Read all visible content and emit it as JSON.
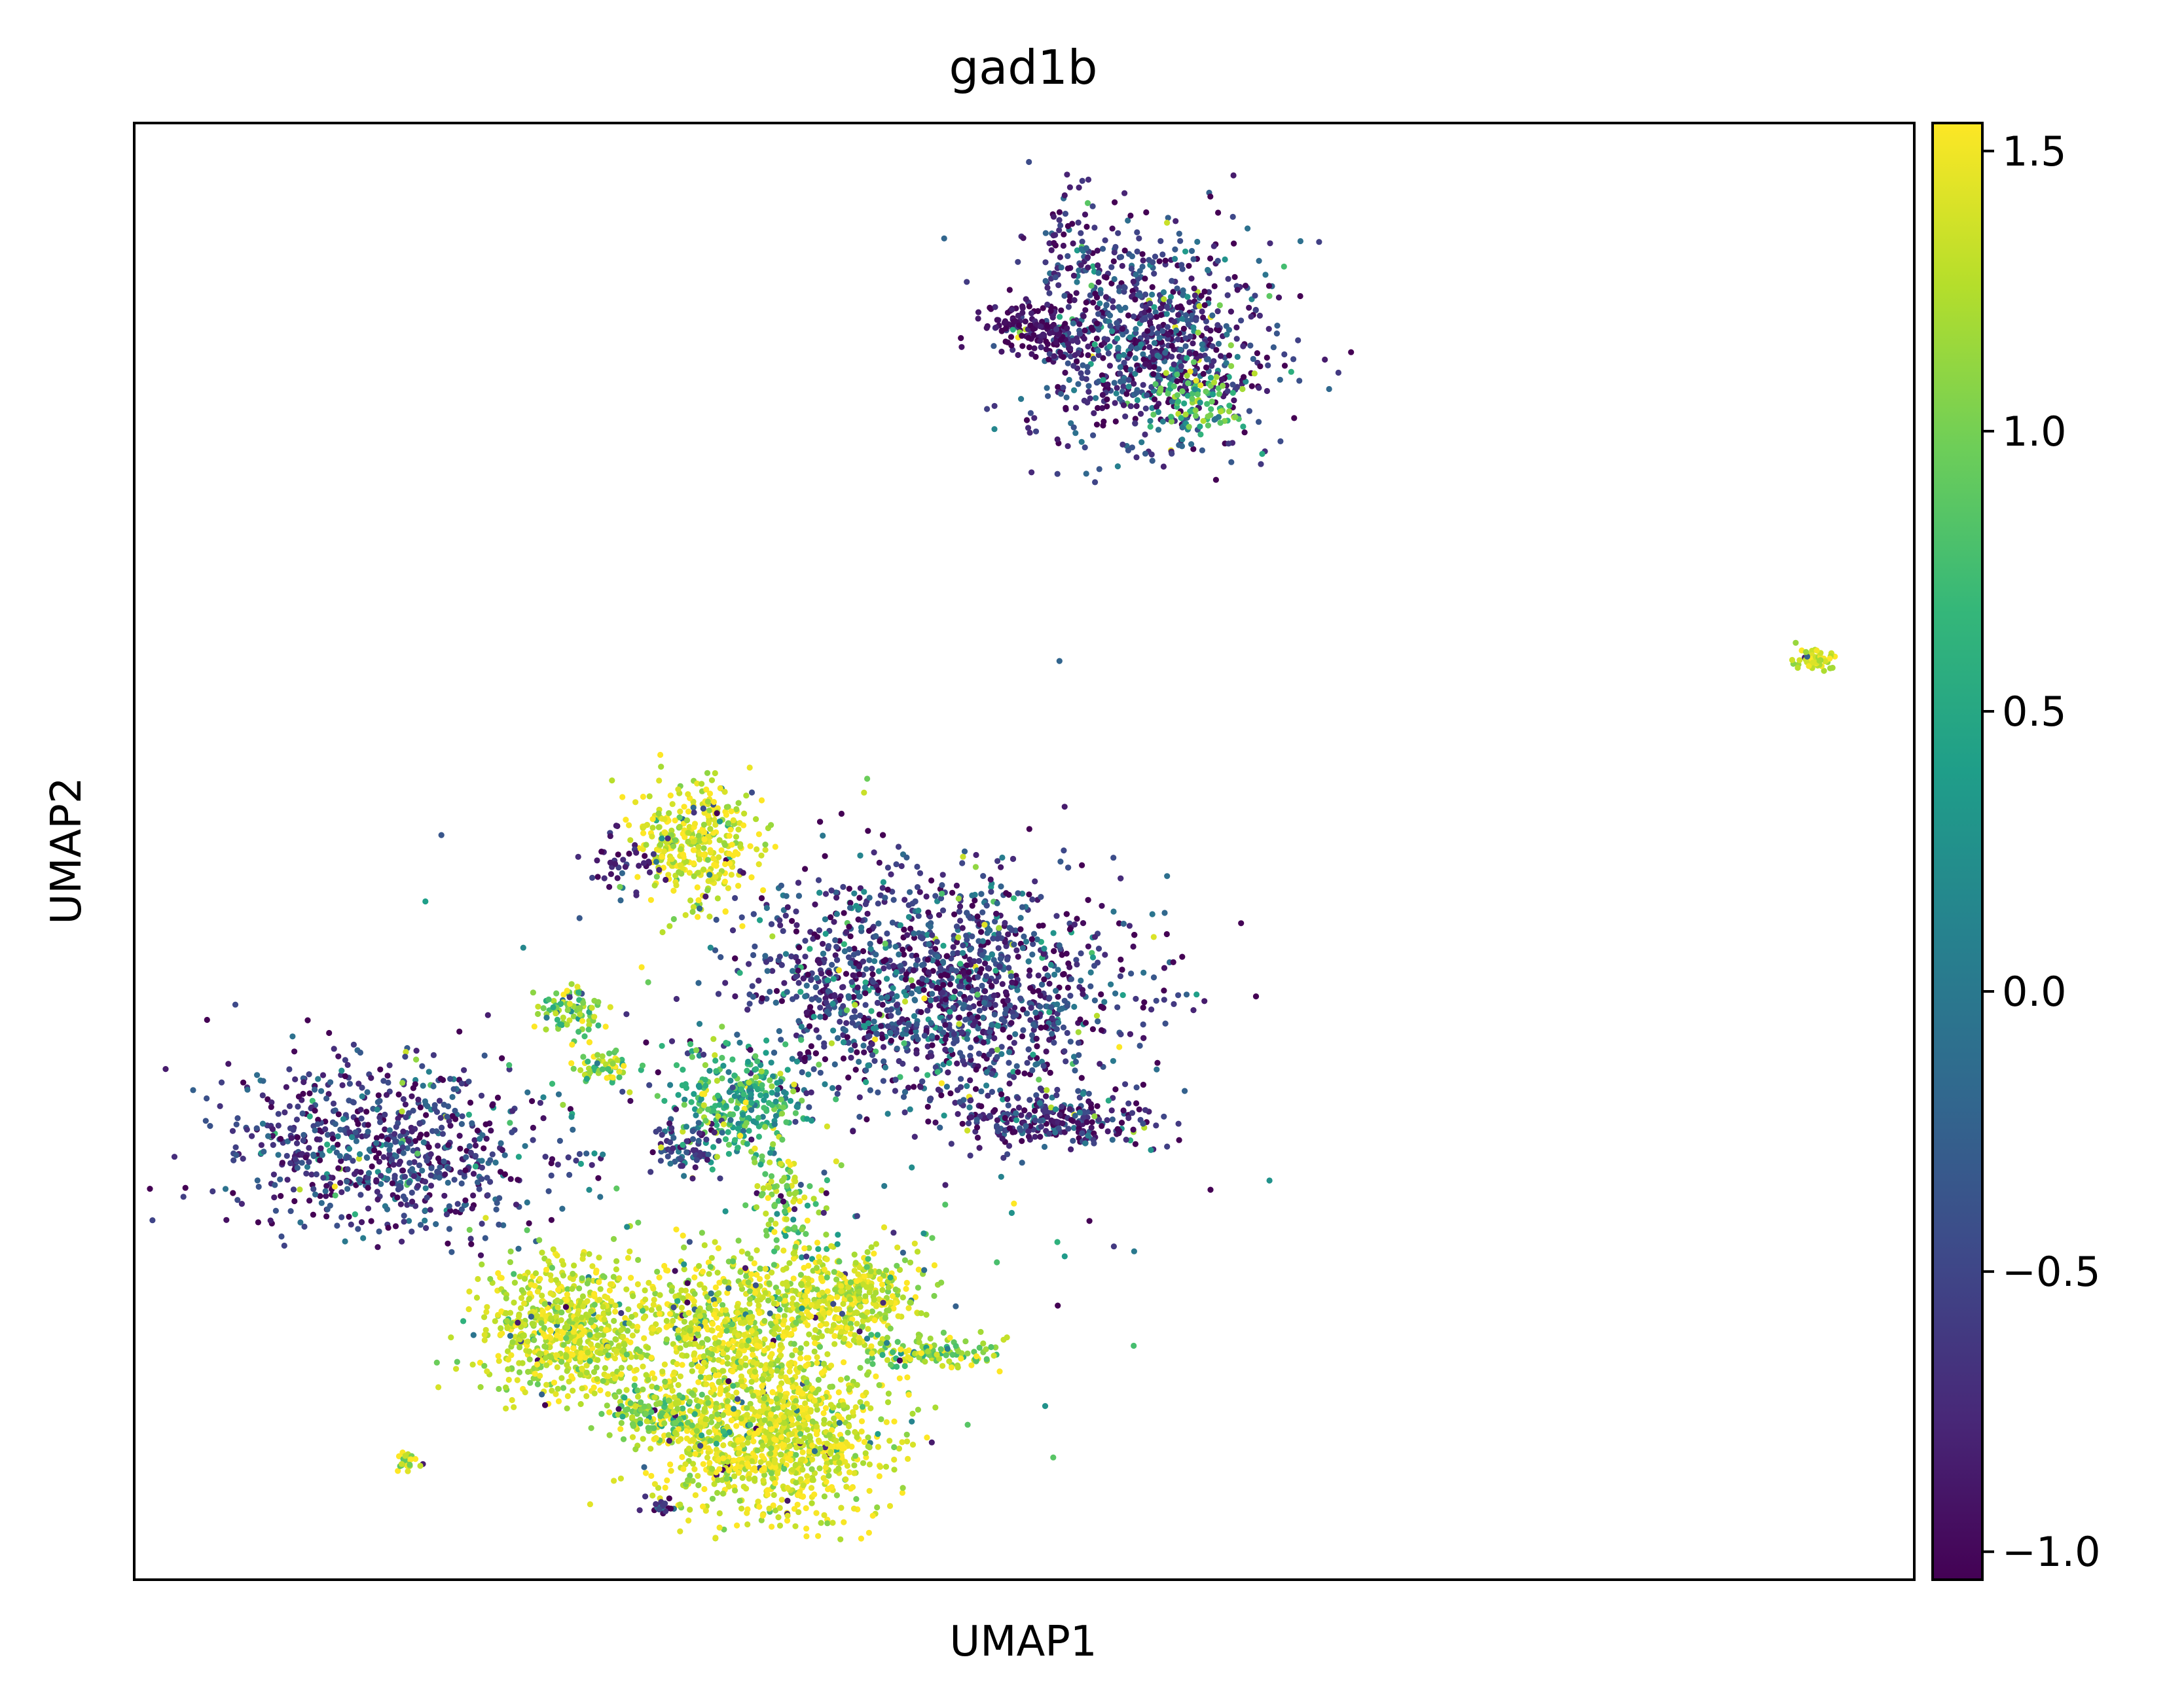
{
  "chart_data": {
    "type": "scatter",
    "title": "gad1b",
    "xlabel": "UMAP1",
    "ylabel": "UMAP2",
    "xlim": [
      0,
      100
    ],
    "ylim": [
      0,
      100
    ],
    "x_ticks_shown": false,
    "y_ticks_shown": false,
    "grid": false,
    "colormap": "viridis",
    "colormap_stops": [
      "#440154",
      "#482878",
      "#3e4989",
      "#31688e",
      "#26828e",
      "#1f9e89",
      "#35b779",
      "#6ece58",
      "#b5de2b",
      "#fde725"
    ],
    "colorbar": {
      "range": [
        -1.05,
        1.55
      ],
      "ticks": [
        -1.0,
        -0.5,
        0.0,
        0.5,
        1.0,
        1.5
      ],
      "tick_labels": [
        "−1.0",
        "−0.5",
        "0.0",
        "0.5",
        "1.0",
        "1.5"
      ]
    },
    "point_count_estimate": 9000,
    "clusters": [
      {
        "id": "top-right-group",
        "x": 57.0,
        "y": 84.5,
        "sx": 3.4,
        "sy": 3.6,
        "n": 900,
        "mean": -0.6,
        "sd": 0.45
      },
      {
        "id": "top-right-left-lobe",
        "x": 50.5,
        "y": 86.0,
        "sx": 1.3,
        "sy": 0.8,
        "n": 150,
        "mean": -0.95,
        "sd": 0.15
      },
      {
        "id": "top-right-arm",
        "x": 53.0,
        "y": 91.0,
        "sx": 0.9,
        "sy": 2.2,
        "n": 80,
        "mean": -0.7,
        "sd": 0.35
      },
      {
        "id": "top-right-green-patch",
        "x": 60.0,
        "y": 81.0,
        "sx": 1.2,
        "sy": 1.0,
        "n": 80,
        "mean": 0.9,
        "sd": 0.3
      },
      {
        "id": "far-right-small",
        "x": 94.4,
        "y": 63.2,
        "sx": 0.45,
        "sy": 0.35,
        "n": 60,
        "mean": 1.4,
        "sd": 0.15
      },
      {
        "id": "upper-yellow",
        "x": 31.5,
        "y": 50.5,
        "sx": 1.6,
        "sy": 2.2,
        "n": 350,
        "mean": 1.4,
        "sd": 0.2
      },
      {
        "id": "upper-yellow-strand",
        "x": 27.5,
        "y": 49.5,
        "sx": 1.0,
        "sy": 1.0,
        "n": 40,
        "mean": -0.9,
        "sd": 0.2
      },
      {
        "id": "central-dark-main",
        "x": 45.0,
        "y": 40.5,
        "sx": 5.2,
        "sy": 3.8,
        "n": 1700,
        "mean": -0.6,
        "sd": 0.45
      },
      {
        "id": "central-dark-right-lobe",
        "x": 51.5,
        "y": 31.5,
        "sx": 3.0,
        "sy": 1.0,
        "n": 250,
        "mean": -0.7,
        "sd": 0.4
      },
      {
        "id": "left-dark",
        "x": 14.0,
        "y": 29.5,
        "sx": 4.2,
        "sy": 2.8,
        "n": 750,
        "mean": -0.6,
        "sd": 0.4
      },
      {
        "id": "small-left-green",
        "x": 24.5,
        "y": 39.0,
        "sx": 1.0,
        "sy": 1.0,
        "n": 90,
        "mean": 1.0,
        "sd": 0.35
      },
      {
        "id": "small-green-2",
        "x": 26.5,
        "y": 35.0,
        "sx": 0.8,
        "sy": 0.6,
        "n": 60,
        "mean": 1.1,
        "sd": 0.3
      },
      {
        "id": "teal-center",
        "x": 34.0,
        "y": 33.0,
        "sx": 1.8,
        "sy": 1.7,
        "n": 300,
        "mean": 0.6,
        "sd": 0.4
      },
      {
        "id": "teal-left-dark",
        "x": 31.0,
        "y": 29.5,
        "sx": 1.0,
        "sy": 1.0,
        "n": 80,
        "mean": -0.5,
        "sd": 0.35
      },
      {
        "id": "connector-strand",
        "x": 36.5,
        "y": 26.0,
        "sx": 1.0,
        "sy": 2.5,
        "n": 120,
        "mean": 1.1,
        "sd": 0.35
      },
      {
        "id": "bottom-left-yellow",
        "x": 24.5,
        "y": 17.0,
        "sx": 2.4,
        "sy": 2.2,
        "n": 700,
        "mean": 1.35,
        "sd": 0.2
      },
      {
        "id": "bottom-center-yellow",
        "x": 35.5,
        "y": 10.0,
        "sx": 3.2,
        "sy": 2.8,
        "n": 1200,
        "mean": 1.4,
        "sd": 0.2
      },
      {
        "id": "bottom-mid-yellow",
        "x": 33.5,
        "y": 17.5,
        "sx": 2.2,
        "sy": 2.2,
        "n": 500,
        "mean": 1.35,
        "sd": 0.22
      },
      {
        "id": "bottom-right-yellow",
        "x": 40.0,
        "y": 19.5,
        "sx": 2.0,
        "sy": 1.5,
        "n": 400,
        "mean": 1.35,
        "sd": 0.2
      },
      {
        "id": "bottom-lower-left-green",
        "x": 29.5,
        "y": 11.5,
        "sx": 1.5,
        "sy": 1.0,
        "n": 150,
        "mean": 1.1,
        "sd": 0.3
      },
      {
        "id": "bottom-right-tail",
        "x": 44.5,
        "y": 15.5,
        "sx": 2.2,
        "sy": 0.6,
        "n": 120,
        "mean": 1.1,
        "sd": 0.35
      },
      {
        "id": "tiny-lower-left",
        "x": 15.2,
        "y": 8.0,
        "sx": 0.35,
        "sy": 0.3,
        "n": 25,
        "mean": 1.2,
        "sd": 0.3
      },
      {
        "id": "tiny-lower-center",
        "x": 29.6,
        "y": 5.0,
        "sx": 0.45,
        "sy": 0.2,
        "n": 20,
        "mean": -0.8,
        "sd": 0.4
      },
      {
        "id": "sparse-scatter",
        "x": 38.0,
        "y": 30.0,
        "sx": 10.0,
        "sy": 10.0,
        "n": 200,
        "mean": 0.3,
        "sd": 0.9
      }
    ]
  }
}
